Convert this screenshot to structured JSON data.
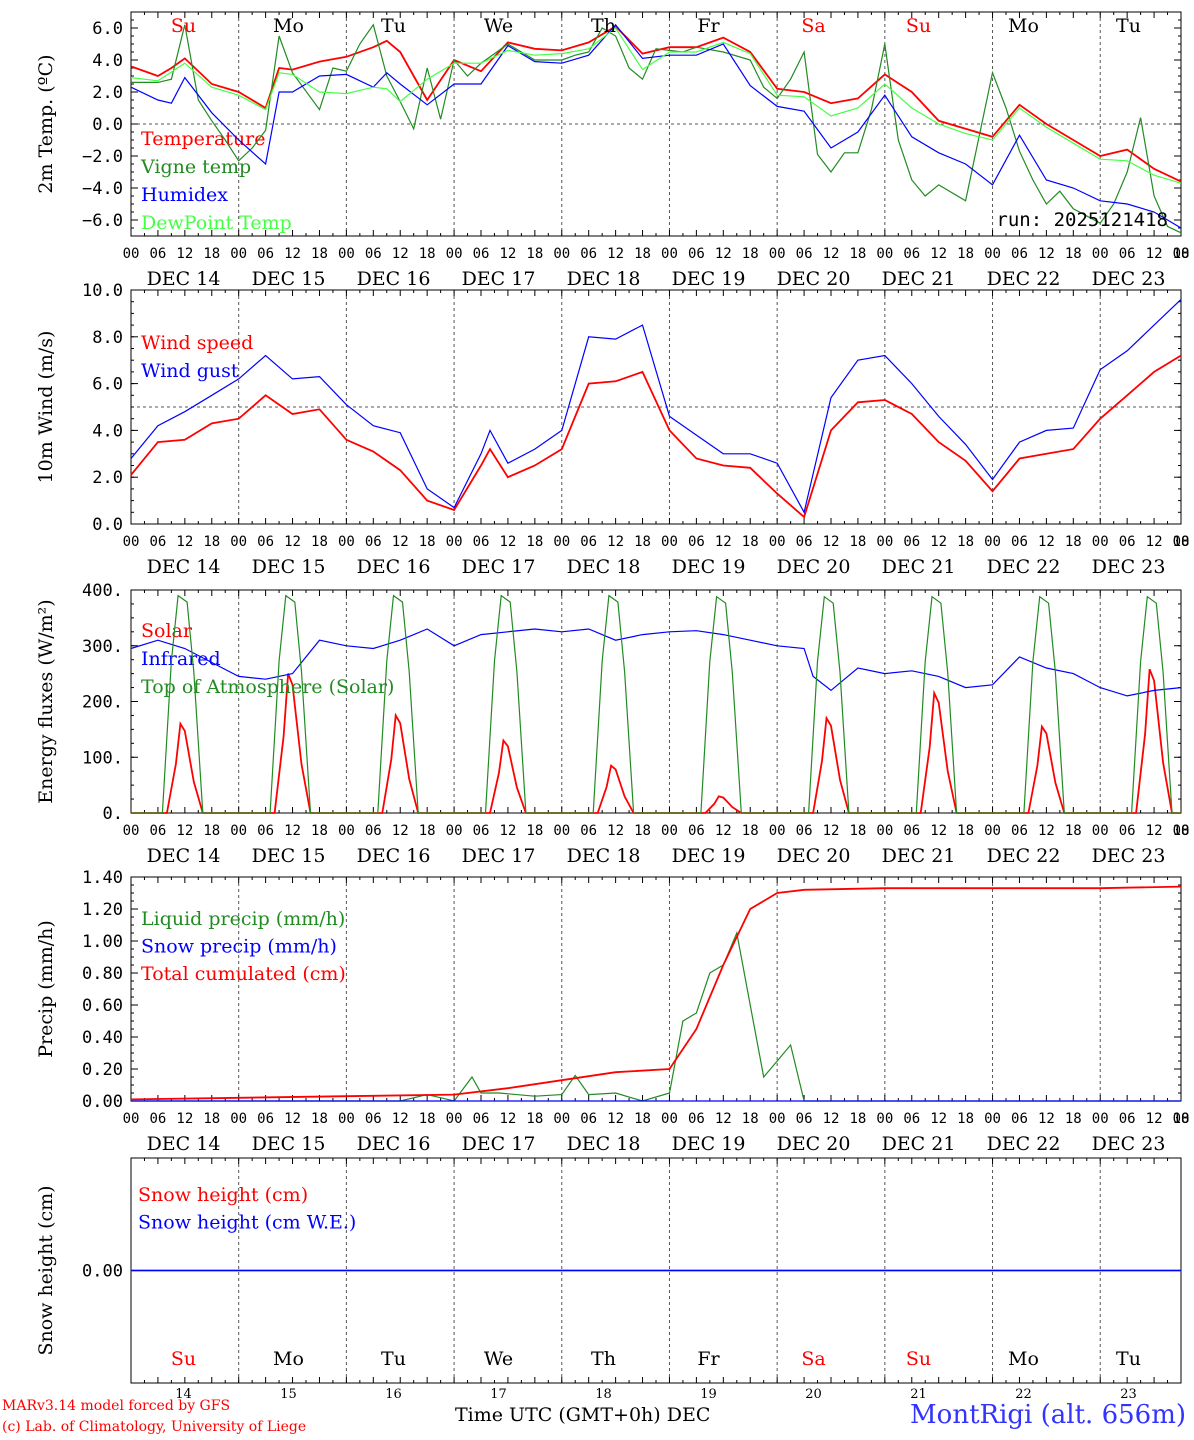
{
  "run_label": "run: 2025121418",
  "day_names": [
    "Su",
    "Mo",
    "Tu",
    "We",
    "Th",
    "Fr",
    "Sa",
    "Su",
    "Mo",
    "Tu"
  ],
  "day_name_colors": [
    "#ff0000",
    "#000000",
    "#000000",
    "#000000",
    "#000000",
    "#000000",
    "#ff0000",
    "#ff0000",
    "#000000",
    "#000000"
  ],
  "date_labels": [
    "DEC 14",
    "DEC 15",
    "DEC 16",
    "DEC 17",
    "DEC 18",
    "DEC 19",
    "DEC 20",
    "DEC 21",
    "DEC 22",
    "DEC 23"
  ],
  "day_numbers": [
    "14",
    "15",
    "16",
    "17",
    "18",
    "19",
    "20",
    "21",
    "22",
    "23"
  ],
  "hour_labels": [
    "00",
    "06",
    "12",
    "18"
  ],
  "footer": {
    "model": "MARv3.14 model forced by GFS",
    "lab": "(c) Lab. of Climatology, University of Liege",
    "axis_title": "Time UTC (GMT+0h)",
    "month": "DEC",
    "station": "MontRigi (alt. 656m)"
  },
  "chart_data": [
    {
      "type": "line",
      "ylabel": "2m Temp. (ºC)",
      "ylim": [
        -7.0,
        7.0
      ],
      "yticks": [
        6.0,
        4.0,
        2.0,
        0.0,
        -2.0,
        -4.0,
        -6.0
      ],
      "ytick_labels": [
        "6.0",
        "4.0",
        "2.0",
        "0.0",
        "−2.0",
        "−4.0",
        "−6.0"
      ],
      "ref_line": 0.0,
      "x_unit": "hours since DEC 14 00 UTC",
      "series": [
        {
          "name": "Temperature",
          "color": "#ff0000",
          "x": [
            0,
            6,
            9,
            12,
            18,
            24,
            30,
            33,
            36,
            42,
            48,
            54,
            57,
            60,
            66,
            72,
            78,
            84,
            90,
            96,
            102,
            108,
            114,
            120,
            126,
            132,
            138,
            144,
            150,
            156,
            162,
            168,
            174,
            180,
            186,
            192,
            198,
            204,
            210,
            216,
            222,
            228,
            234
          ],
          "y": [
            3.6,
            3.0,
            3.5,
            4.1,
            2.5,
            2.0,
            1.0,
            3.5,
            3.4,
            3.9,
            4.2,
            4.8,
            5.2,
            4.5,
            1.5,
            4.0,
            3.3,
            5.1,
            4.7,
            4.6,
            5.1,
            6.1,
            4.4,
            4.8,
            4.8,
            5.4,
            4.5,
            2.2,
            2.0,
            1.3,
            1.6,
            3.1,
            2.0,
            0.2,
            -0.3,
            -0.8,
            1.2,
            0.0,
            -1.0,
            -2.0,
            -1.6,
            -2.8,
            -3.6
          ]
        },
        {
          "name": "Vigne temp",
          "color": "#228b22",
          "x": [
            0,
            6,
            9,
            12,
            15,
            18,
            21,
            24,
            27,
            30,
            33,
            36,
            42,
            45,
            48,
            51,
            54,
            57,
            60,
            63,
            66,
            69,
            72,
            75,
            78,
            81,
            84,
            90,
            96,
            99,
            102,
            105,
            108,
            111,
            114,
            117,
            120,
            123,
            126,
            132,
            138,
            141,
            144,
            147,
            150,
            153,
            156,
            159,
            162,
            165,
            168,
            171,
            174,
            177,
            180,
            186,
            192,
            195,
            198,
            201,
            204,
            207,
            210,
            216,
            219,
            222,
            225,
            228,
            231,
            234
          ],
          "y": [
            2.6,
            2.6,
            2.8,
            6.2,
            1.5,
            0.2,
            -1.0,
            -2.3,
            -1.5,
            -0.4,
            5.5,
            3.2,
            0.9,
            3.5,
            3.3,
            5.0,
            6.2,
            3.0,
            1.4,
            -0.3,
            3.5,
            0.3,
            4.0,
            3.0,
            3.8,
            4.4,
            5.0,
            4.0,
            4.0,
            4.3,
            4.5,
            6.0,
            5.5,
            3.5,
            2.8,
            4.7,
            4.6,
            4.5,
            4.8,
            4.5,
            4.0,
            2.3,
            1.6,
            2.8,
            4.5,
            -1.9,
            -3.0,
            -1.8,
            -1.8,
            0.9,
            5.0,
            -1.0,
            -3.5,
            -4.5,
            -3.8,
            -4.8,
            3.2,
            1.0,
            -1.7,
            -3.5,
            -5.0,
            -4.2,
            -5.3,
            -6.2,
            -5.0,
            -3.0,
            0.4,
            -4.5,
            -6.4,
            -6.8
          ]
        },
        {
          "name": "Humidex",
          "color": "#0000ff",
          "x": [
            0,
            6,
            9,
            12,
            18,
            24,
            30,
            33,
            36,
            42,
            48,
            54,
            57,
            60,
            66,
            72,
            78,
            84,
            90,
            96,
            102,
            108,
            114,
            120,
            126,
            132,
            138,
            144,
            150,
            156,
            162,
            168,
            174,
            180,
            186,
            192,
            198,
            204,
            210,
            216,
            222,
            228,
            234
          ],
          "y": [
            2.3,
            1.5,
            1.3,
            2.9,
            0.7,
            -1.0,
            -2.5,
            2.0,
            2.0,
            3.0,
            3.1,
            2.3,
            3.2,
            2.5,
            1.2,
            2.5,
            2.5,
            4.9,
            3.9,
            3.8,
            4.3,
            6.2,
            4.1,
            4.3,
            4.3,
            5.0,
            2.4,
            1.1,
            0.8,
            -1.5,
            -0.5,
            1.8,
            -0.8,
            -1.8,
            -2.5,
            -3.8,
            -0.7,
            -3.5,
            -4.0,
            -4.8,
            -5.0,
            -5.5,
            -6.5
          ]
        },
        {
          "name": "DewPoint Temp",
          "color": "#44ff44",
          "x": [
            0,
            6,
            12,
            18,
            24,
            30,
            33,
            36,
            42,
            48,
            54,
            57,
            60,
            66,
            72,
            78,
            84,
            90,
            96,
            102,
            108,
            114,
            120,
            126,
            132,
            138,
            144,
            150,
            156,
            162,
            168,
            174,
            180,
            186,
            192,
            198,
            204,
            210,
            216,
            222,
            228,
            234
          ],
          "y": [
            2.9,
            2.7,
            3.8,
            2.3,
            1.8,
            0.9,
            3.2,
            3.1,
            2.0,
            1.9,
            2.3,
            2.2,
            1.4,
            2.8,
            3.8,
            3.8,
            4.6,
            4.3,
            4.4,
            4.7,
            6.0,
            3.4,
            4.5,
            4.5,
            5.1,
            4.4,
            1.8,
            1.7,
            0.5,
            1.0,
            2.5,
            1.0,
            0.0,
            -0.6,
            -1.0,
            1.0,
            -0.2,
            -1.2,
            -2.2,
            -2.3,
            -3.2,
            -3.7
          ]
        }
      ]
    },
    {
      "type": "line",
      "ylabel": "10m Wind (m/s)",
      "ylim": [
        0.0,
        10.0
      ],
      "yticks": [
        10.0,
        8.0,
        6.0,
        4.0,
        2.0,
        0.0
      ],
      "ytick_labels": [
        "10.0",
        "8.0",
        "6.0",
        "4.0",
        "2.0",
        "0.0"
      ],
      "ref_line": 5.0,
      "x_unit": "hours since DEC 14 00 UTC",
      "series": [
        {
          "name": "Wind speed",
          "color": "#ff0000",
          "x": [
            0,
            6,
            12,
            18,
            24,
            30,
            36,
            42,
            48,
            54,
            60,
            66,
            72,
            78,
            80,
            84,
            90,
            96,
            102,
            108,
            114,
            120,
            126,
            132,
            138,
            144,
            150,
            156,
            162,
            168,
            174,
            180,
            186,
            192,
            198,
            204,
            210,
            216,
            222,
            228,
            234
          ],
          "y": [
            2.1,
            3.5,
            3.6,
            4.3,
            4.5,
            5.5,
            4.7,
            4.9,
            3.6,
            3.1,
            2.3,
            1.0,
            0.6,
            2.5,
            3.2,
            2.0,
            2.5,
            3.2,
            6.0,
            6.1,
            6.5,
            4.0,
            2.8,
            2.5,
            2.4,
            1.3,
            0.3,
            4.0,
            5.2,
            5.3,
            4.7,
            3.5,
            2.7,
            1.4,
            2.8,
            3.0,
            3.2,
            4.5,
            5.5,
            6.5,
            7.2
          ]
        },
        {
          "name": "Wind gust",
          "color": "#0000ff",
          "x": [
            0,
            6,
            12,
            18,
            24,
            30,
            36,
            42,
            48,
            54,
            60,
            66,
            72,
            78,
            80,
            84,
            90,
            96,
            102,
            108,
            114,
            120,
            126,
            132,
            138,
            144,
            150,
            156,
            162,
            168,
            174,
            180,
            186,
            192,
            198,
            204,
            210,
            216,
            222,
            228,
            234
          ],
          "y": [
            2.8,
            4.2,
            4.8,
            5.5,
            6.2,
            7.2,
            6.2,
            6.3,
            5.1,
            4.2,
            3.9,
            1.5,
            0.7,
            3.0,
            4.0,
            2.6,
            3.2,
            4.0,
            8.0,
            7.9,
            8.5,
            4.6,
            3.8,
            3.0,
            3.0,
            2.6,
            0.5,
            5.4,
            7.0,
            7.2,
            6.0,
            4.6,
            3.4,
            1.9,
            3.5,
            4.0,
            4.1,
            6.6,
            7.4,
            8.5,
            9.6
          ]
        }
      ]
    },
    {
      "type": "line",
      "ylabel": "Energy fluxes (W/m²)",
      "ylim": [
        0,
        400
      ],
      "yticks": [
        400,
        300,
        200,
        100,
        0
      ],
      "ytick_labels": [
        "400.",
        "300.",
        "200.",
        "100.",
        "0."
      ],
      "x_unit": "hours since DEC 14 00 UTC",
      "series": [
        {
          "name": "Solar",
          "color": "#ff0000",
          "daily_peaks": [
            160,
            250,
            175,
            130,
            85,
            30,
            170,
            215,
            155,
            258
          ]
        },
        {
          "name": "Infrared",
          "color": "#0000ff",
          "x": [
            0,
            6,
            12,
            18,
            24,
            30,
            36,
            42,
            48,
            54,
            60,
            66,
            72,
            78,
            84,
            90,
            96,
            102,
            108,
            114,
            120,
            126,
            132,
            138,
            144,
            150,
            152,
            156,
            162,
            168,
            174,
            180,
            186,
            192,
            198,
            204,
            210,
            216,
            222,
            228,
            234
          ],
          "y": [
            295,
            310,
            295,
            270,
            245,
            240,
            250,
            310,
            300,
            295,
            310,
            330,
            300,
            320,
            325,
            330,
            325,
            330,
            310,
            320,
            325,
            327,
            320,
            310,
            300,
            295,
            245,
            220,
            260,
            250,
            255,
            245,
            225,
            230,
            280,
            260,
            250,
            225,
            210,
            220,
            225
          ]
        },
        {
          "name": "Top of Atmosphere (Solar)",
          "color": "#228b22",
          "daily_peaks": [
            390,
            390,
            390,
            390,
            390,
            388,
            388,
            388,
            388,
            388
          ]
        }
      ],
      "day_window_hours": [
        7,
        16
      ]
    },
    {
      "type": "line",
      "ylabel": "Precip (mm/h)",
      "ylim": [
        0.0,
        1.4
      ],
      "yticks": [
        1.4,
        1.2,
        1.0,
        0.8,
        0.6,
        0.4,
        0.2,
        0.0
      ],
      "ytick_labels": [
        "1.40",
        "1.20",
        "1.00",
        "0.80",
        "0.60",
        "0.40",
        "0.20",
        "0.00"
      ],
      "x_unit": "hours since DEC 14 00 UTC",
      "series": [
        {
          "name": "Liquid precip (mm/h)",
          "color": "#228b22",
          "x": [
            0,
            60,
            66,
            72,
            76,
            78,
            82,
            90,
            96,
            99,
            102,
            108,
            114,
            120,
            123,
            126,
            129,
            132,
            135,
            138,
            141,
            144,
            147,
            150,
            234
          ],
          "y": [
            0.0,
            0.0,
            0.04,
            0.0,
            0.15,
            0.05,
            0.05,
            0.03,
            0.04,
            0.16,
            0.04,
            0.05,
            0.0,
            0.05,
            0.5,
            0.55,
            0.8,
            0.85,
            1.05,
            0.6,
            0.15,
            0.25,
            0.35,
            0.0,
            0.0
          ]
        },
        {
          "name": "Snow precip (mm/h)",
          "color": "#0000ff",
          "x": [
            0,
            234
          ],
          "y": [
            0.0,
            0.0
          ]
        },
        {
          "name": "Total cumulated (cm)",
          "color": "#ff0000",
          "x": [
            0,
            24,
            48,
            72,
            84,
            96,
            108,
            120,
            126,
            132,
            138,
            141,
            144,
            150,
            168,
            192,
            216,
            234
          ],
          "y": [
            0.01,
            0.02,
            0.03,
            0.04,
            0.08,
            0.13,
            0.18,
            0.2,
            0.45,
            0.85,
            1.2,
            1.25,
            1.3,
            1.32,
            1.33,
            1.33,
            1.33,
            1.34
          ]
        }
      ]
    },
    {
      "type": "line",
      "ylabel": "Snow height (cm)",
      "ylim": [
        -1.0,
        1.0
      ],
      "yticks": [
        0.0
      ],
      "ytick_labels": [
        "0.00"
      ],
      "x_unit": "hours since DEC 14 00 UTC",
      "series": [
        {
          "name": "Snow height (cm)",
          "color": "#ff0000",
          "x": [
            0,
            234
          ],
          "y": [
            0.0,
            0.0
          ]
        },
        {
          "name": "Snow height (cm W.E.)",
          "color": "#0000ff",
          "x": [
            0,
            234
          ],
          "y": [
            0.0,
            0.0
          ]
        }
      ]
    }
  ]
}
